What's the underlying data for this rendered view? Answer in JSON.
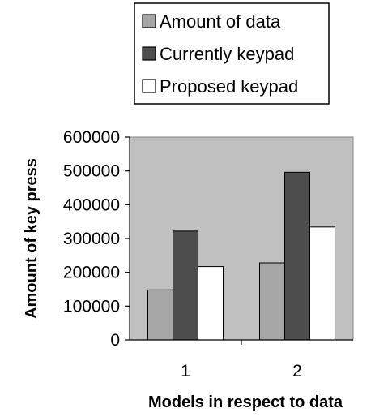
{
  "chart_data": {
    "type": "bar",
    "title": "",
    "xlabel": "Models in respect to data",
    "ylabel": "Amount of key press",
    "categories": [
      "1",
      "2"
    ],
    "series": [
      {
        "name": "Amount of data",
        "color": "#a6a6a6",
        "values": [
          148000,
          228000
        ]
      },
      {
        "name": "Currently keypad",
        "color": "#4d4d4d",
        "values": [
          322000,
          496000
        ]
      },
      {
        "name": "Proposed keypad",
        "color": "#ffffff",
        "values": [
          217000,
          334000
        ]
      }
    ],
    "ylim": [
      0,
      600000
    ],
    "yticks": [
      "0",
      "100000",
      "200000",
      "300000",
      "400000",
      "500000",
      "600000"
    ],
    "plot_background": "#c0c0c0",
    "grid": false,
    "legend_position": "top"
  }
}
